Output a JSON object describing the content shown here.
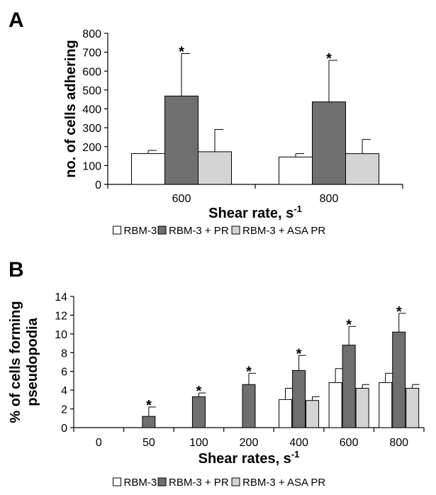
{
  "colors": {
    "RBM-3": "#ffffff",
    "RBM-3 + PR": "#6f6f6f",
    "RBM-3 + ASA PR": "#d4d4d4"
  },
  "chart_data": [
    {
      "type": "bar",
      "panel_label": "A",
      "categories": [
        "600",
        "800"
      ],
      "series": [
        {
          "name": "RBM-3",
          "values": [
            163,
            145
          ],
          "errors": [
            17,
            18
          ]
        },
        {
          "name": "RBM-3 + PR",
          "values": [
            468,
            437
          ],
          "errors": [
            225,
            220
          ]
        },
        {
          "name": "RBM-3 + ASA PR",
          "values": [
            173,
            163
          ],
          "errors": [
            118,
            75
          ]
        }
      ],
      "significance": [
        {
          "category": "600",
          "series": "RBM-3 + PR",
          "mark": "*"
        },
        {
          "category": "800",
          "series": "RBM-3 + PR",
          "mark": "*"
        }
      ],
      "xlabel": "Shear rate, s",
      "xlabel_superscript": "-1",
      "ylabel": "no. of cells adhering",
      "ylim": [
        0,
        800
      ],
      "yticks": [
        0,
        100,
        200,
        300,
        400,
        500,
        600,
        700,
        800
      ],
      "grid": false,
      "legend_position": "bottom"
    },
    {
      "type": "bar",
      "panel_label": "B",
      "categories": [
        "0",
        "50",
        "100",
        "200",
        "400",
        "600",
        "800"
      ],
      "series": [
        {
          "name": "RBM-3",
          "values": [
            0,
            0,
            0,
            0,
            3.0,
            4.8,
            4.8
          ],
          "errors": [
            0,
            0,
            0,
            0,
            1.2,
            1.5,
            1.0
          ]
        },
        {
          "name": "RBM-3 + PR",
          "values": [
            0,
            1.2,
            3.3,
            4.6,
            6.1,
            8.8,
            10.2
          ],
          "errors": [
            0,
            1.0,
            0.4,
            1.2,
            1.6,
            2.0,
            2.0
          ]
        },
        {
          "name": "RBM-3 + ASA PR",
          "values": [
            0,
            0,
            0,
            0,
            2.9,
            4.2,
            4.2
          ],
          "errors": [
            0,
            0,
            0,
            0,
            0.4,
            0.4,
            0.4
          ]
        }
      ],
      "significance": [
        {
          "category": "50",
          "series": "RBM-3 + PR",
          "mark": "*"
        },
        {
          "category": "100",
          "series": "RBM-3 + PR",
          "mark": "*"
        },
        {
          "category": "200",
          "series": "RBM-3 + PR",
          "mark": "*"
        },
        {
          "category": "400",
          "series": "RBM-3 + PR",
          "mark": "*"
        },
        {
          "category": "600",
          "series": "RBM-3 + PR",
          "mark": "*"
        },
        {
          "category": "800",
          "series": "RBM-3 + PR",
          "mark": "*"
        }
      ],
      "xlabel": "Shear rates, s",
      "xlabel_superscript": "-1",
      "ylabel": "% of cells forming pseudopodia",
      "ylabel_lines": [
        "% of cells forming",
        "pseudopodia"
      ],
      "ylim": [
        0,
        14
      ],
      "yticks": [
        0,
        2,
        4,
        6,
        8,
        10,
        12,
        14
      ],
      "grid": false,
      "legend_position": "bottom"
    }
  ]
}
